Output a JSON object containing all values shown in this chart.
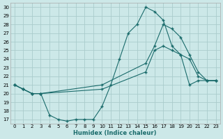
{
  "xlabel": "Humidex (Indice chaleur)",
  "xlim": [
    -0.5,
    23.5
  ],
  "ylim": [
    16.5,
    30.5
  ],
  "xticks": [
    0,
    1,
    2,
    3,
    4,
    5,
    6,
    7,
    8,
    9,
    10,
    11,
    12,
    13,
    14,
    15,
    16,
    17,
    18,
    19,
    20,
    21,
    22,
    23
  ],
  "yticks": [
    17,
    18,
    19,
    20,
    21,
    22,
    23,
    24,
    25,
    26,
    27,
    28,
    29,
    30
  ],
  "bg_color": "#cce8e8",
  "line_color": "#1a6b6b",
  "grid_color": "#aacccc",
  "line1_x": [
    0,
    1,
    2,
    3,
    4,
    5,
    6,
    7,
    8,
    9,
    10,
    11,
    12,
    13,
    14,
    15,
    16,
    17,
    18,
    19,
    20,
    21,
    22,
    23
  ],
  "line1_y": [
    21.0,
    20.5,
    20.0,
    20.0,
    17.5,
    17.0,
    16.8,
    17.0,
    17.0,
    17.0,
    18.5,
    21.0,
    24.0,
    27.0,
    28.0,
    30.0,
    29.5,
    28.5,
    25.5,
    24.5,
    21.0,
    21.5,
    21.5,
    21.5
  ],
  "line2_x": [
    0,
    1,
    2,
    3,
    10,
    15,
    16,
    17,
    18,
    19,
    20,
    21,
    22,
    23
  ],
  "line2_y": [
    21.0,
    20.5,
    20.0,
    20.0,
    21.0,
    23.5,
    25.5,
    28.0,
    27.5,
    26.5,
    24.5,
    22.5,
    21.5,
    21.5
  ],
  "line3_x": [
    0,
    1,
    2,
    3,
    10,
    15,
    16,
    17,
    18,
    19,
    20,
    21,
    22,
    23
  ],
  "line3_y": [
    21.0,
    20.5,
    20.0,
    20.0,
    20.5,
    22.5,
    25.0,
    25.5,
    25.0,
    24.5,
    24.0,
    22.0,
    21.5,
    21.5
  ]
}
